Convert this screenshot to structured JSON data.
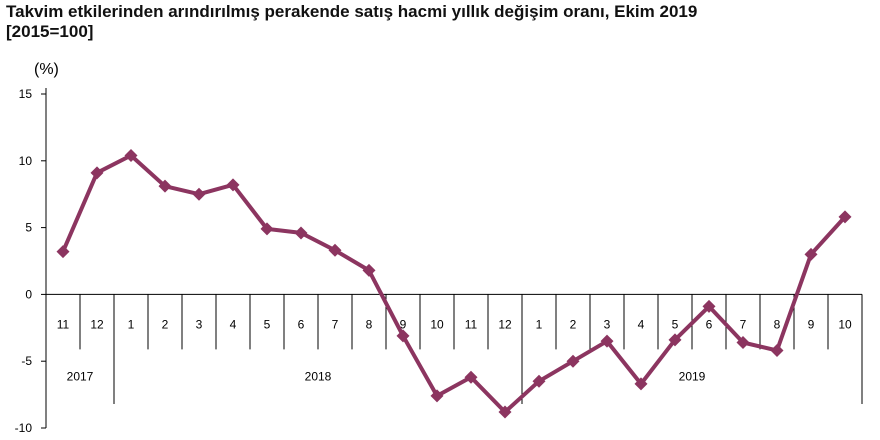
{
  "chart_data": {
    "type": "line",
    "title_line1": "Takvim etkilerinden arındırılmış perakende satış hacmi yıllık değişim oranı, Ekim 2019",
    "title_line2": "[2015=100]",
    "ylabel": "(%)",
    "ylim": [
      -10,
      15
    ],
    "yticks": [
      15,
      10,
      5,
      0,
      -5,
      -10
    ],
    "categories": [
      "11",
      "12",
      "1",
      "2",
      "3",
      "4",
      "5",
      "6",
      "7",
      "8",
      "9",
      "10",
      "11",
      "12",
      "1",
      "2",
      "3",
      "4",
      "5",
      "6",
      "7",
      "8",
      "9",
      "10"
    ],
    "year_groups": [
      {
        "label": "2017",
        "count": 2
      },
      {
        "label": "2018",
        "count": 12
      },
      {
        "label": "2019",
        "count": 10
      }
    ],
    "series": [
      {
        "values": [
          3.2,
          9.1,
          10.4,
          8.1,
          7.5,
          8.2,
          4.9,
          4.6,
          3.3,
          1.8,
          -3.1,
          -7.6,
          -6.2,
          -8.8,
          -6.5,
          -5.0,
          -3.5,
          -6.7,
          -3.4,
          -0.9,
          -3.6,
          -4.2,
          3.0,
          5.8
        ],
        "color": "#8c3560"
      }
    ],
    "grid": false
  }
}
